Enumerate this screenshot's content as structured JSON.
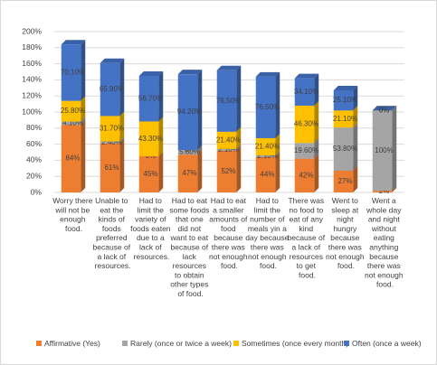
{
  "chart_data": {
    "type": "bar",
    "stacked": true,
    "categories": [
      "Worry there will not be enough food.",
      "Unable to eat the kinds of foods preferred because of a lack of resources.",
      "Had to limit the variety of foods eaten due to a lack of resources.",
      "Had to eat some foods that one did not want to eat because of lack resources to obtain other types of food.",
      "Had to eat a smaller amounts of food because there was not enough food.",
      "Had to limit the number of meals yin a day because there was not enough food.",
      "There was no food to eat of any kind because of a lack of resources to get food.",
      "Went to sleep at night hungry because there was not enough food.",
      "Went a whole day and night without eating anything because there was not enough food."
    ],
    "series": [
      {
        "name": "Affirmative (Yes)",
        "color": "#ed7d31",
        "values": [
          84,
          61,
          45,
          47,
          52,
          44,
          42,
          27,
          2
        ],
        "value_labels": [
          "84%",
          "61%",
          "45%",
          "47%",
          "52%",
          "44%",
          "42%",
          "27%",
          "2%"
        ]
      },
      {
        "name": "Rarely (once or twice a week)",
        "color": "#a5a5a5",
        "values": [
          4.1,
          2.4,
          0,
          5.8,
          2.1,
          2.1,
          19.6,
          53.8,
          100
        ],
        "value_labels": [
          "4.10%",
          "2.40%",
          "0%",
          "5.80%",
          "2.10%",
          "2.10%",
          "19.60%",
          "53.80%",
          "100%"
        ]
      },
      {
        "name": "Sometimes (once every month)",
        "color": "#ffc000",
        "values": [
          25.8,
          31.7,
          43.3,
          0,
          21.4,
          21.4,
          46.3,
          21.1,
          0
        ],
        "value_labels": [
          "25.80%",
          "31.70%",
          "43.30%",
          "0%",
          "21.40%",
          "21.40%",
          "46.30%",
          "21.10%",
          "0%"
        ]
      },
      {
        "name": "Often (once a week)",
        "color": "#4472c4",
        "values": [
          70.1,
          65.9,
          56.7,
          94.2,
          76.5,
          76.5,
          34.1,
          25.1,
          0
        ],
        "value_labels": [
          "70.10%",
          "65.90%",
          "56.70%",
          "94.20%",
          "76.50%",
          "76.50%",
          "34.10%",
          "25.10%",
          "0%"
        ]
      }
    ],
    "ylim": [
      0,
      200
    ],
    "yticks": [
      {
        "value": 0,
        "label": "0%"
      },
      {
        "value": 20,
        "label": "20%"
      },
      {
        "value": 40,
        "label": "40%"
      },
      {
        "value": 60,
        "label": "60%"
      },
      {
        "value": 80,
        "label": "80%"
      },
      {
        "value": 100,
        "label": "100%"
      },
      {
        "value": 120,
        "label": "120%"
      },
      {
        "value": 140,
        "label": "140%"
      },
      {
        "value": 160,
        "label": "160%"
      },
      {
        "value": 180,
        "label": "180%"
      },
      {
        "value": 200,
        "label": "200%"
      }
    ],
    "grid": true,
    "legend": "bottom"
  }
}
